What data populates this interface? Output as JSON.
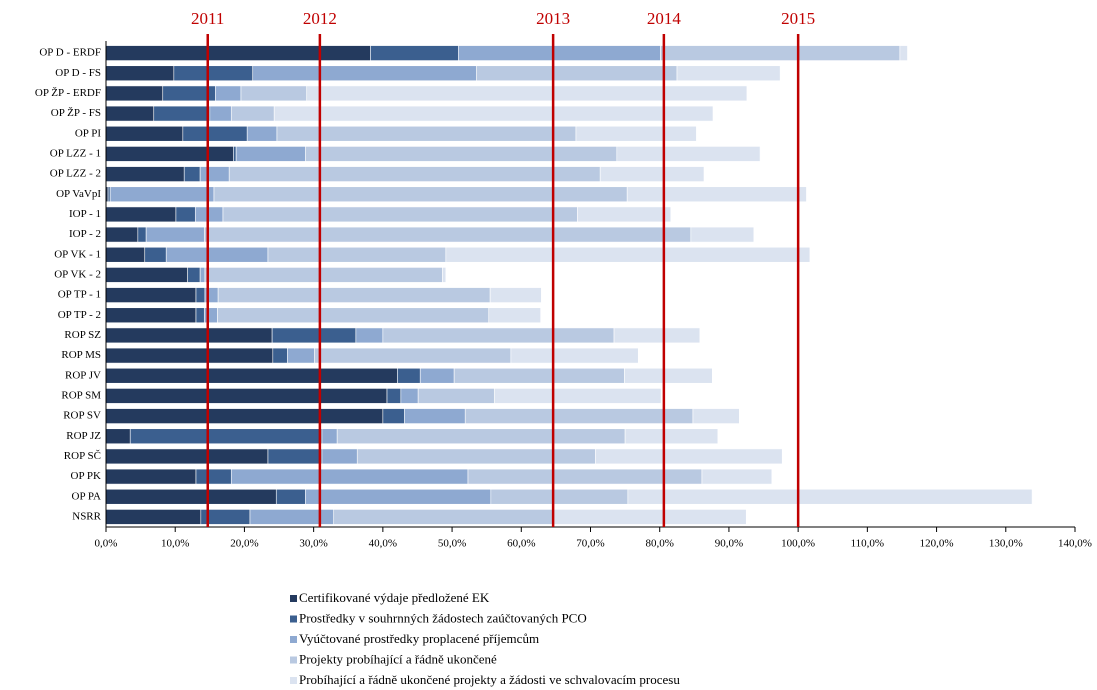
{
  "chart_data": {
    "type": "stacked_barh",
    "categories": [
      "OP D  - ERDF",
      "OP D - FS",
      "OP ŽP - ERDF",
      "OP ŽP - FS",
      "OP PI",
      "OP LZZ - 1",
      "OP LZZ - 2",
      "OP VaVpI",
      "IOP - 1",
      "IOP - 2",
      "OP VK - 1",
      "OP VK - 2",
      "OP TP - 1",
      "OP TP - 2",
      "ROP SZ",
      "ROP MS",
      "ROP JV",
      "ROP SM",
      "ROP SV",
      "ROP JZ",
      "ROP SČ",
      "OP PK",
      "OP PA",
      "NSRR"
    ],
    "series": [
      {
        "name": "Certifikované výdaje předložené EK",
        "color": "#243a5e",
        "values": [
          38.2,
          9.8,
          8.2,
          6.9,
          11.1,
          18.4,
          11.3,
          0.3,
          10.1,
          4.6,
          5.6,
          11.8,
          13.0,
          13.0,
          24.0,
          24.1,
          42.1,
          40.6,
          40.0,
          3.5,
          23.4,
          13.0,
          24.6,
          13.7
        ]
      },
      {
        "name": "Prostředky v souhrnných žádostech zaúčtovaných PCO",
        "color": "#3b5f8f",
        "values": [
          12.7,
          11.4,
          7.6,
          8.1,
          9.3,
          0.4,
          2.3,
          0.3,
          2.8,
          1.2,
          3.1,
          1.8,
          1.3,
          1.2,
          12.1,
          2.1,
          3.3,
          2.0,
          3.1,
          27.7,
          7.8,
          5.1,
          4.2,
          7.1
        ]
      },
      {
        "name": "Vyúčtované prostředky proplacené příjemcům",
        "color": "#8ea9d1",
        "values": [
          29.2,
          32.3,
          3.7,
          3.1,
          4.3,
          10.0,
          4.2,
          15.0,
          4.0,
          8.4,
          14.7,
          0.7,
          1.9,
          1.9,
          3.9,
          3.9,
          4.9,
          2.5,
          8.8,
          2.2,
          5.1,
          34.2,
          26.8,
          12.1
        ]
      },
      {
        "name": "Projekty probíhající a řádně ukončené",
        "color": "#b9c9e1",
        "values": [
          34.6,
          29.0,
          9.5,
          6.2,
          43.2,
          45.0,
          53.6,
          59.7,
          51.2,
          70.3,
          25.7,
          34.3,
          39.3,
          39.2,
          33.4,
          28.4,
          24.6,
          11.0,
          32.9,
          41.6,
          34.4,
          33.8,
          19.8,
          31.8
        ]
      },
      {
        "name": "Probíhající a řádně ukončené projekty a žádosti ve schvalovacím procesu",
        "color": "#dbe3f0",
        "values": [
          1.1,
          14.9,
          63.6,
          63.4,
          17.4,
          20.7,
          15.0,
          25.9,
          13.5,
          9.1,
          52.6,
          0.5,
          7.4,
          7.5,
          12.4,
          18.4,
          12.7,
          24.1,
          6.7,
          13.4,
          27.0,
          10.1,
          58.4,
          27.8
        ]
      }
    ],
    "xlim": [
      0,
      140
    ],
    "xticks": [
      {
        "value": 0,
        "label": "0,0%"
      },
      {
        "value": 10,
        "label": "10,0%"
      },
      {
        "value": 20,
        "label": "20,0%"
      },
      {
        "value": 30,
        "label": "30,0%"
      },
      {
        "value": 40,
        "label": "40,0%"
      },
      {
        "value": 50,
        "label": "50,0%"
      },
      {
        "value": 60,
        "label": "60,0%"
      },
      {
        "value": 70,
        "label": "70,0%"
      },
      {
        "value": 80,
        "label": "80,0%"
      },
      {
        "value": 90,
        "label": "90,0%"
      },
      {
        "value": 100,
        "label": "100,0%"
      },
      {
        "value": 110,
        "label": "110,0%"
      },
      {
        "value": 120,
        "label": "120,0%"
      },
      {
        "value": 130,
        "label": "130,0%"
      },
      {
        "value": 140,
        "label": "140,0%"
      }
    ],
    "reference_lines": [
      {
        "label": "2011",
        "value": 14.7
      },
      {
        "label": "2012",
        "value": 30.9
      },
      {
        "label": "2013",
        "value": 64.6
      },
      {
        "label": "2014",
        "value": 80.6
      },
      {
        "label": "2015",
        "value": 100
      }
    ],
    "reference_color": "#c00000",
    "legend": "bottom"
  }
}
